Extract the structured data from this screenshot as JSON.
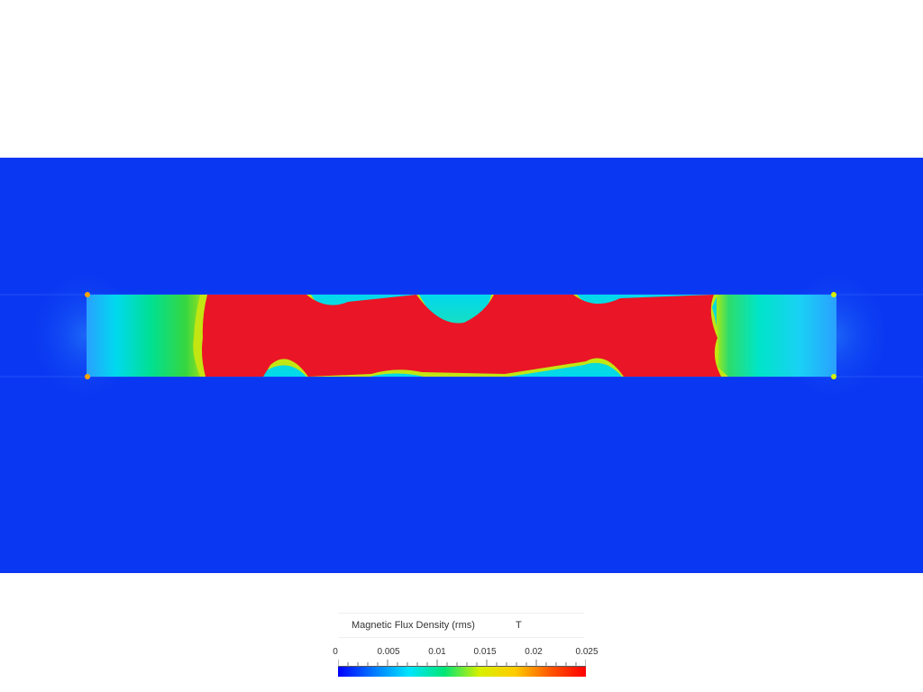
{
  "legend": {
    "title": "Magnetic Flux Density (rms)",
    "unit": "T",
    "ticks": [
      "0",
      "0.005",
      "0.01",
      "0.015",
      "0.02",
      "0.025"
    ],
    "range": [
      0,
      0.025
    ],
    "colormap": [
      "#0000ff",
      "#0077ff",
      "#00e5ff",
      "#00e676",
      "#d8f000",
      "#ffcc00",
      "#ff5500",
      "#ff0000"
    ]
  },
  "colors": {
    "background": "#0a37f2",
    "core": "#ea1527",
    "window_body": "#00d9e8"
  }
}
